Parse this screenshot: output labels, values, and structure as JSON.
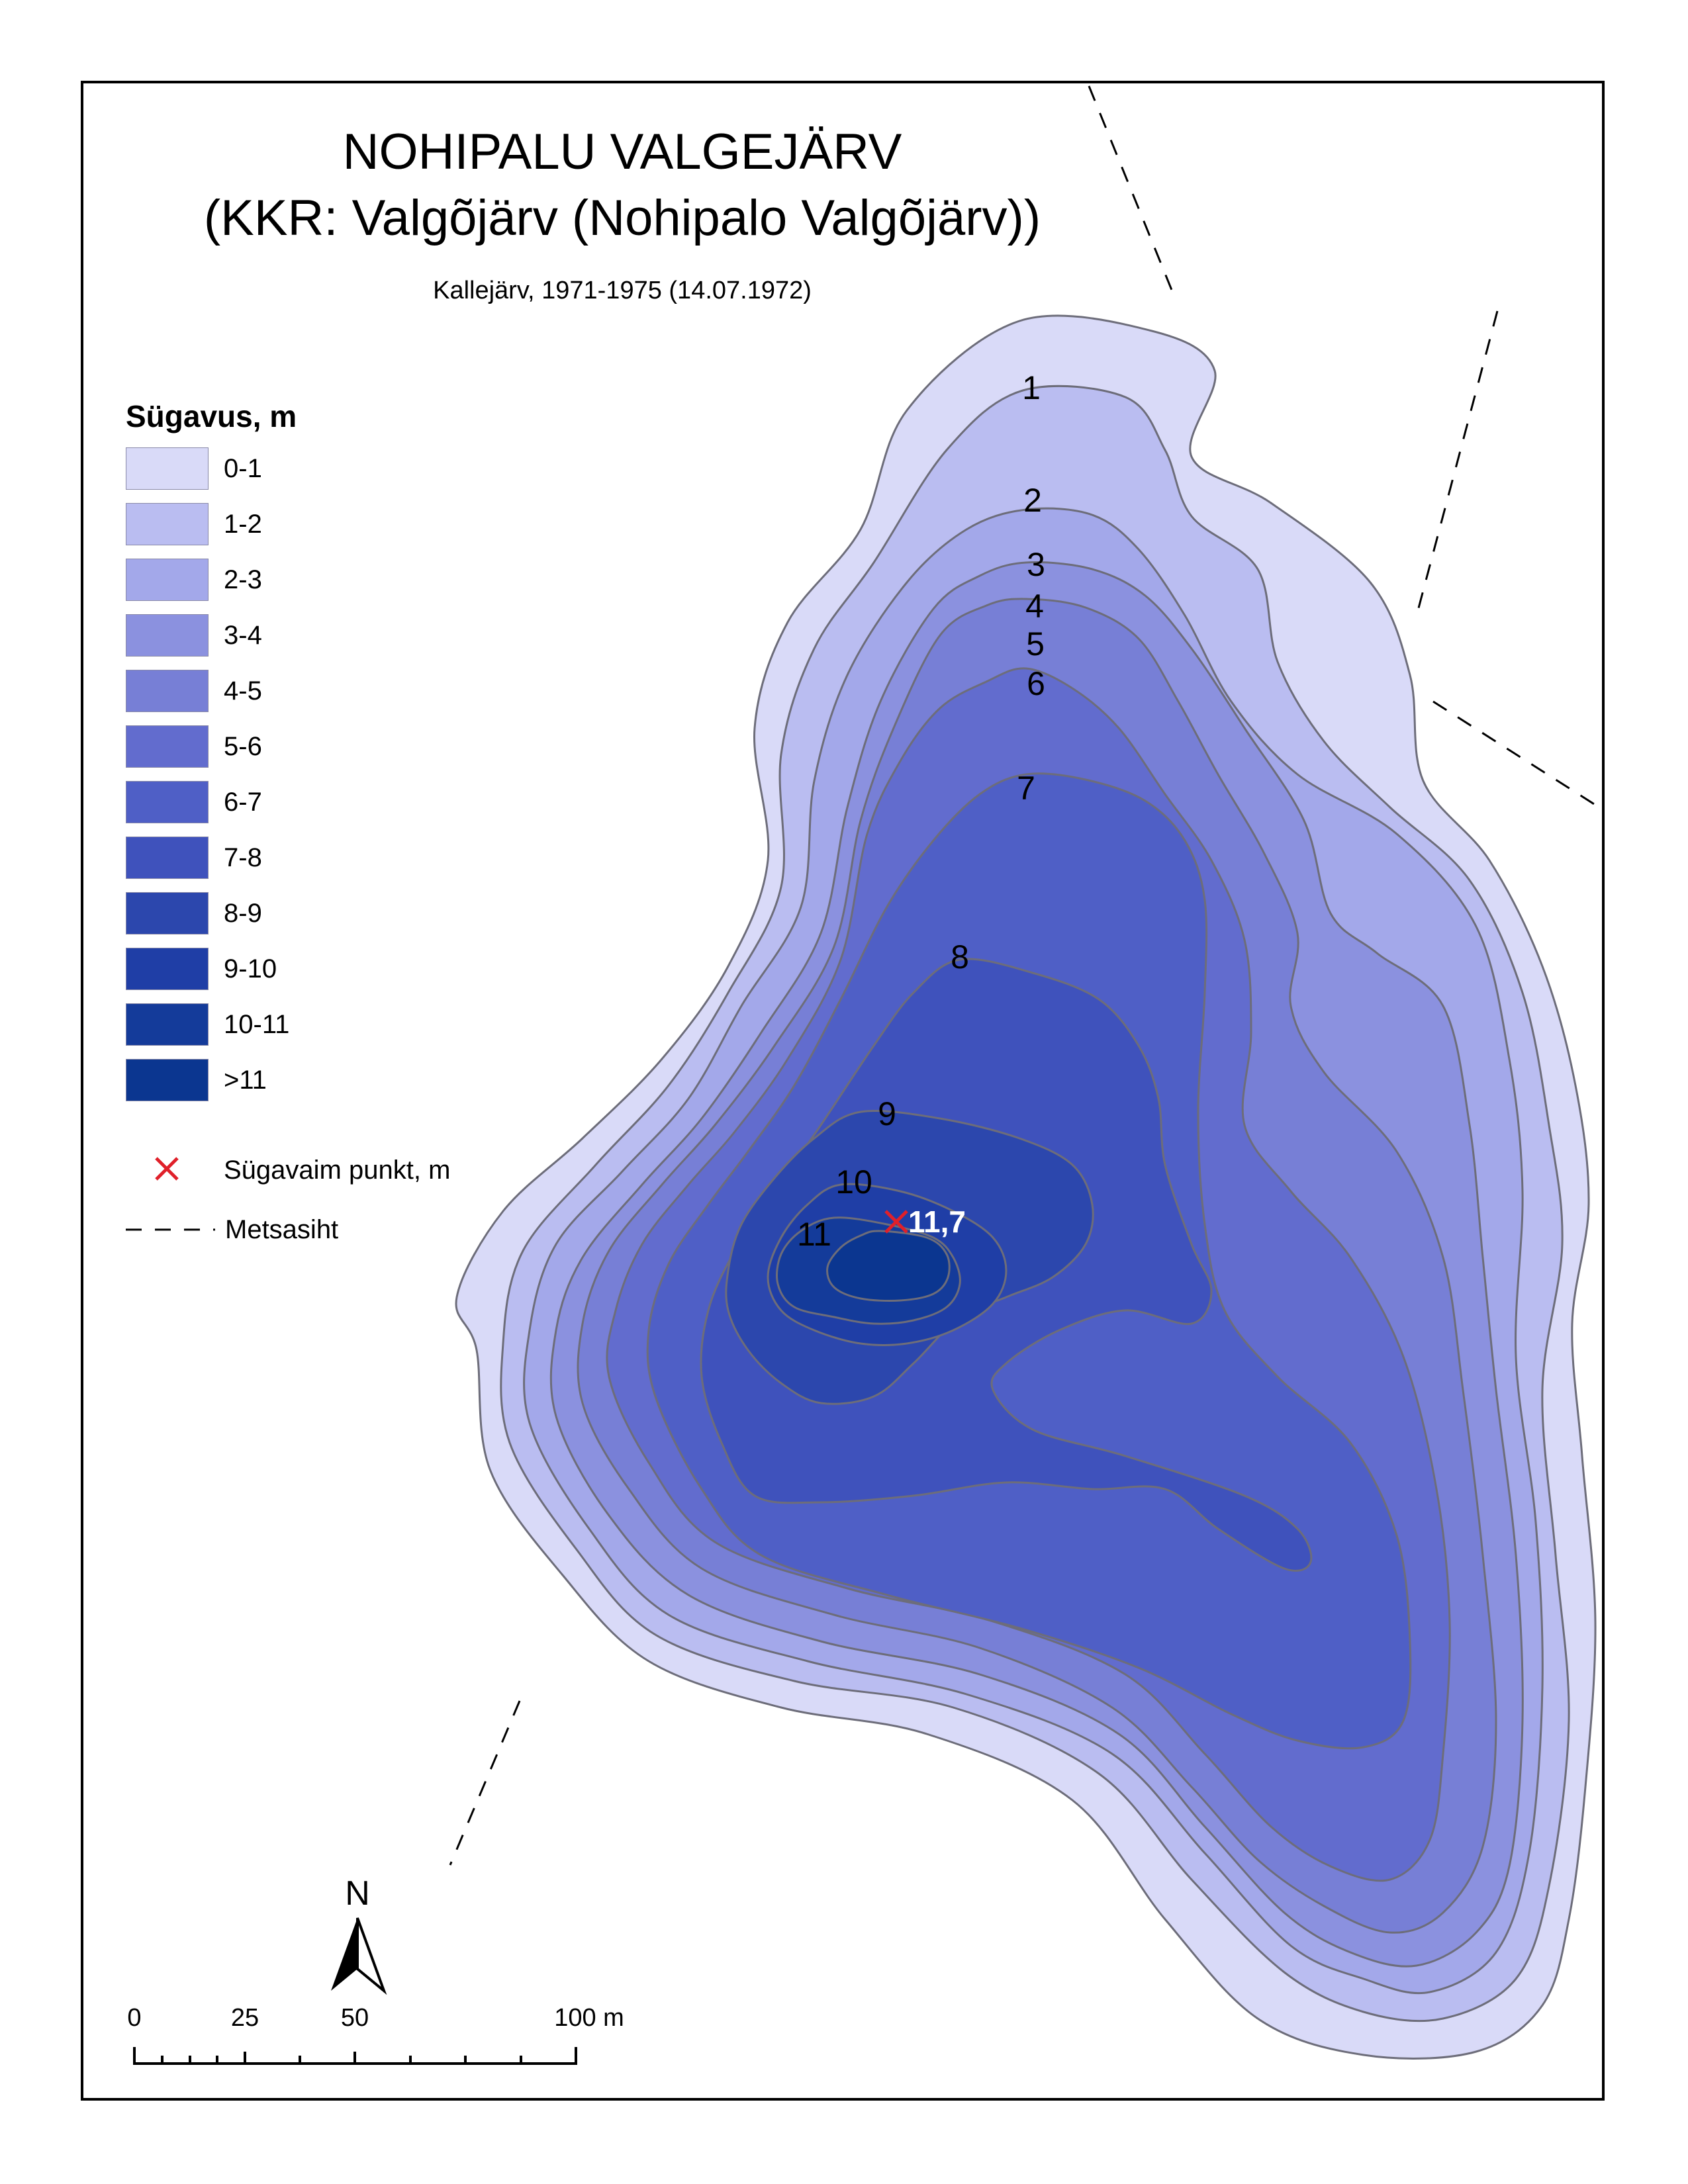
{
  "title": {
    "line1": "NOHIPALU VALGEJÄRV",
    "line2": "(KKR: Valgõjärv (Nohipalo Valgõjärv))",
    "subtitle": "Kallejärv, 1971-1975 (14.07.1972)"
  },
  "legend": {
    "heading": "Sügavus, m",
    "classes": [
      {
        "label": "0-1",
        "color": "#d9daf8"
      },
      {
        "label": "1-2",
        "color": "#babdf1"
      },
      {
        "label": "2-3",
        "color": "#a3a8ea"
      },
      {
        "label": "3-4",
        "color": "#8b91df"
      },
      {
        "label": "4-5",
        "color": "#777fd6"
      },
      {
        "label": "5-6",
        "color": "#626cce"
      },
      {
        "label": "6-7",
        "color": "#4f5fc6"
      },
      {
        "label": "7-8",
        "color": "#3f52bc"
      },
      {
        "label": "8-9",
        "color": "#2c47ad"
      },
      {
        "label": "9-10",
        "color": "#1f3ea6"
      },
      {
        "label": "10-11",
        "color": "#143b9a"
      },
      {
        "label": ">11",
        "color": "#0b3690"
      }
    ],
    "deepest_point": {
      "label": "Sügavaim punkt, m",
      "color": "#e0202a",
      "icon": "x-marker-icon"
    },
    "forest_line": {
      "label": "Metsasiht",
      "icon": "dashed-line-icon"
    }
  },
  "map": {
    "contour_labels": [
      "1",
      "2",
      "3",
      "4",
      "5",
      "6",
      "7",
      "8",
      "9",
      "10",
      "11"
    ],
    "deepest_value": "11,7",
    "contour_line_color": "#6d6d7a"
  },
  "north_arrow": {
    "label": "N",
    "icon": "north-arrow-icon"
  },
  "scale_bar": {
    "labels": [
      "0",
      "25",
      "50",
      "100 m"
    ]
  }
}
